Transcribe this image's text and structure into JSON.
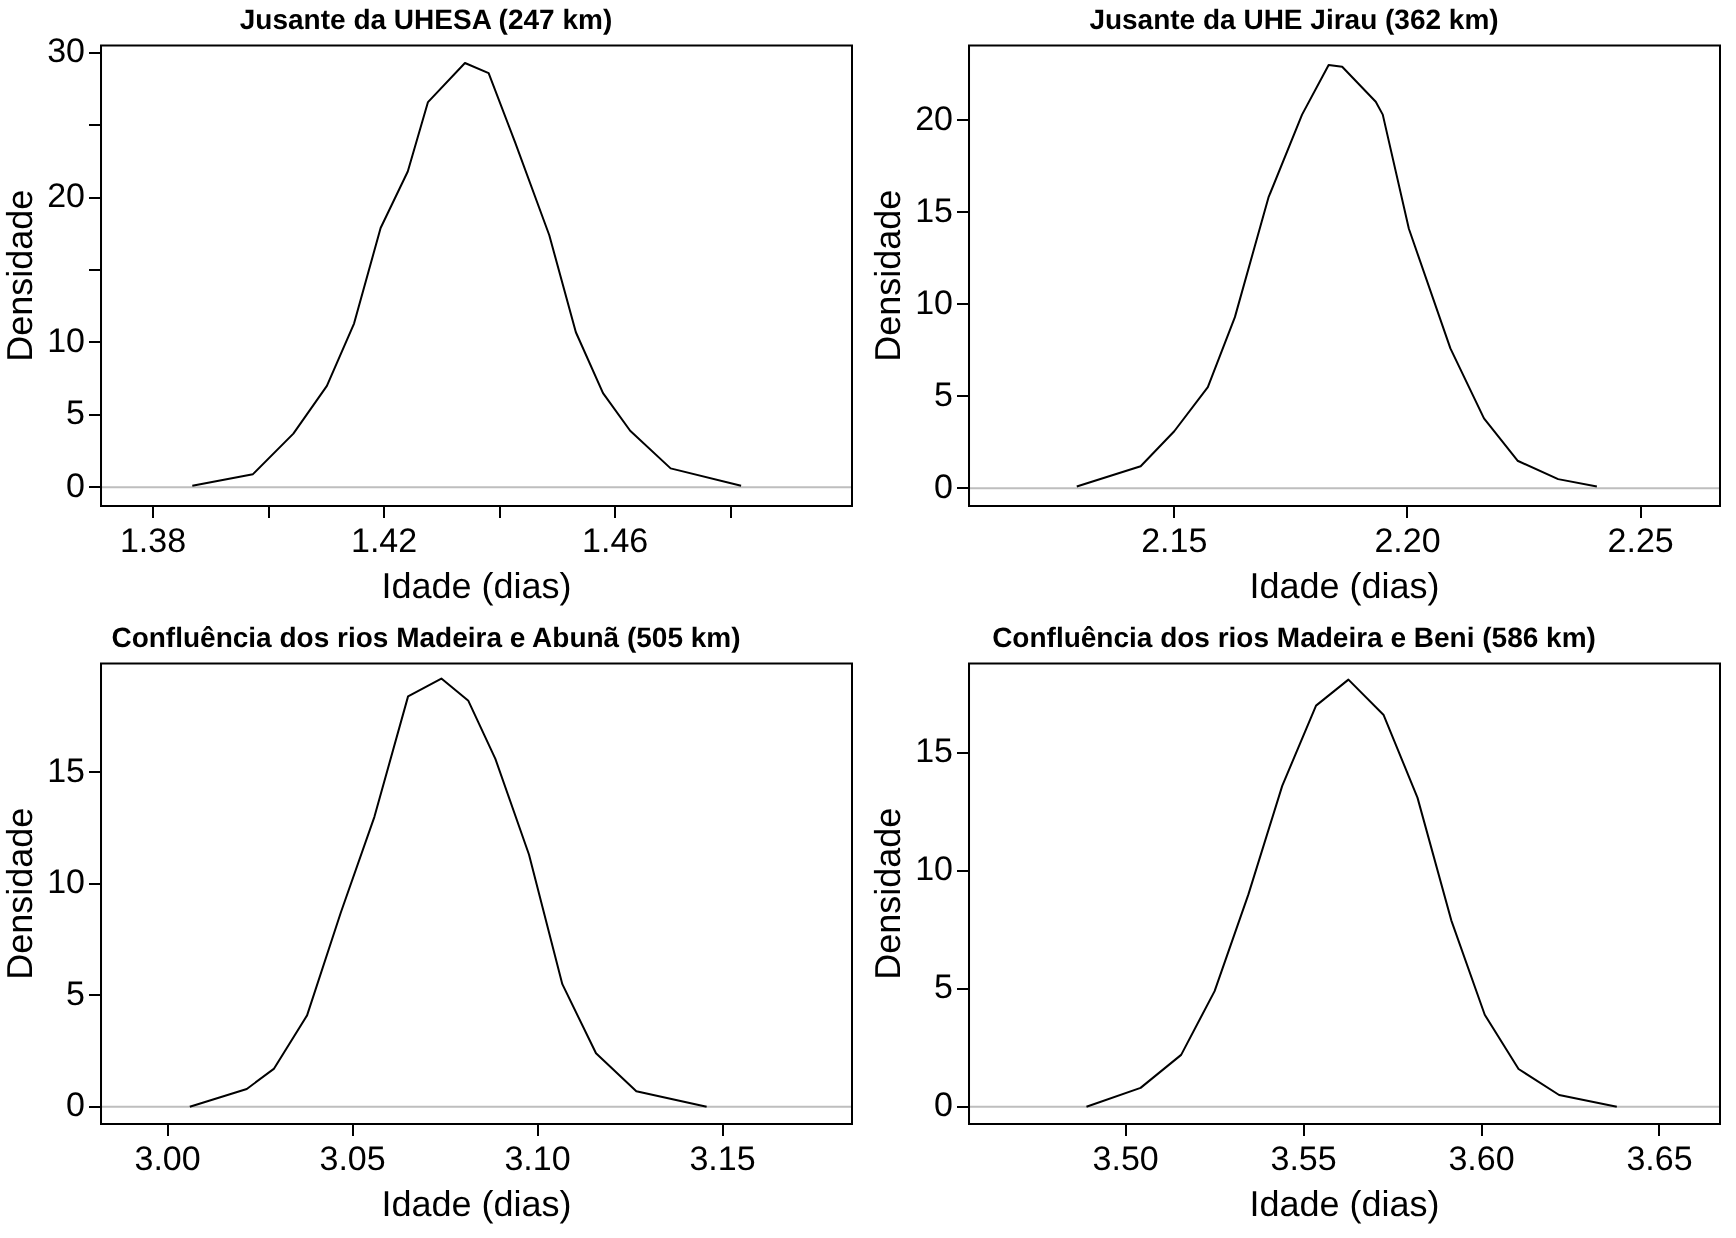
{
  "chart_data": [
    {
      "type": "line",
      "title": "Jusante da UHESA (247 km)",
      "xlabel": "Idade (dias)",
      "ylabel": "Densidade",
      "xlim": [
        1.371,
        1.501
      ],
      "ylim": [
        -1.3,
        30.5
      ],
      "xticks": [
        1.38,
        {
          "value": 1.4,
          "label": null
        },
        1.42,
        {
          "value": 1.44,
          "label": null
        },
        1.46,
        {
          "value": 1.48,
          "label": null
        }
      ],
      "yticks": [
        0,
        5,
        10,
        {
          "value": 15,
          "label": null
        },
        20,
        {
          "value": 25,
          "label": null
        },
        30
      ],
      "grid": false,
      "marker": "none",
      "line_style": "solid",
      "ref_lines": [
        {
          "axis": "y",
          "value": 0,
          "color": "#bebebe"
        }
      ],
      "series": [
        {
          "color": "#000000",
          "x": [
            1.3868,
            1.3973,
            1.4043,
            1.4101,
            1.4148,
            1.4194,
            1.4241,
            1.4276,
            1.434,
            1.4381,
            1.4427,
            1.4486,
            1.4532,
            1.4579,
            1.4626,
            1.4696,
            1.4818
          ],
          "values": [
            0.1,
            0.9,
            3.7,
            7.0,
            11.3,
            17.9,
            21.8,
            26.6,
            29.3,
            28.6,
            23.8,
            17.4,
            10.7,
            6.5,
            3.9,
            1.3,
            0.1
          ]
        }
      ]
    },
    {
      "type": "line",
      "title": "Jusante da UHE Jirau (362 km)",
      "xlabel": "Idade (dias)",
      "ylabel": "Densidade",
      "xlim": [
        2.106,
        2.267
      ],
      "ylim": [
        -0.96,
        24.05
      ],
      "xticks": [
        2.15,
        {
          "value": 2.2,
          "label": "2.20"
        },
        2.25
      ],
      "yticks": [
        0,
        5,
        10,
        15,
        20
      ],
      "grid": false,
      "marker": "none",
      "line_style": "solid",
      "ref_lines": [
        {
          "axis": "y",
          "value": 0,
          "color": "#bebebe"
        }
      ],
      "series": [
        {
          "color": "#000000",
          "x": [
            2.1291,
            2.1428,
            2.15,
            2.1572,
            2.163,
            2.1702,
            2.1774,
            2.1831,
            2.186,
            2.1932,
            2.1947,
            2.2003,
            2.2092,
            2.2164,
            2.2236,
            2.2323,
            2.2406
          ],
          "values": [
            0.1,
            1.2,
            3.1,
            5.5,
            9.3,
            15.8,
            20.3,
            23.0,
            22.9,
            21.0,
            20.3,
            14.1,
            7.6,
            3.8,
            1.5,
            0.5,
            0.1
          ]
        }
      ]
    },
    {
      "type": "line",
      "title": "Confluência dos rios Madeira e Abunã (505 km)",
      "xlabel": "Idade (dias)",
      "ylabel": "Densidade",
      "xlim": [
        2.982,
        3.185
      ],
      "ylim": [
        -0.77,
        19.87
      ],
      "xticks": [
        {
          "value": 3.0,
          "label": "3.00"
        },
        3.05,
        {
          "value": 3.1,
          "label": "3.10"
        },
        3.15
      ],
      "yticks": [
        0,
        5,
        10,
        15
      ],
      "grid": false,
      "marker": "none",
      "line_style": "solid",
      "ref_lines": [
        {
          "axis": "y",
          "value": 0,
          "color": "#bebebe"
        }
      ],
      "series": [
        {
          "color": "#000000",
          "x": [
            3.006,
            3.0214,
            3.0287,
            3.0377,
            3.0468,
            3.0559,
            3.065,
            3.074,
            3.0813,
            3.0886,
            3.0977,
            3.1067,
            3.1158,
            3.1267,
            3.1457
          ],
          "values": [
            0.0,
            0.8,
            1.7,
            4.1,
            8.7,
            13.0,
            18.4,
            19.2,
            18.2,
            15.6,
            11.3,
            5.5,
            2.4,
            0.7,
            0.0
          ]
        }
      ]
    },
    {
      "type": "line",
      "title": "Confluência dos rios Madeira e Beni (586 km)",
      "xlabel": "Idade (dias)",
      "ylabel": "Densidade",
      "xlim": [
        3.456,
        3.667
      ],
      "ylim": [
        -0.73,
        18.78
      ],
      "xticks": [
        {
          "value": 3.5,
          "label": "3.50"
        },
        3.55,
        {
          "value": 3.6,
          "label": "3.60"
        },
        3.65
      ],
      "yticks": [
        0,
        5,
        10,
        15
      ],
      "grid": false,
      "marker": "none",
      "line_style": "solid",
      "ref_lines": [
        {
          "axis": "y",
          "value": 0,
          "color": "#bebebe"
        }
      ],
      "series": [
        {
          "color": "#000000",
          "x": [
            3.489,
            3.5042,
            3.5156,
            3.525,
            3.5345,
            3.544,
            3.5535,
            3.5626,
            3.5725,
            3.582,
            3.5915,
            3.6009,
            3.6104,
            3.6218,
            3.638
          ],
          "values": [
            0.0,
            0.8,
            2.2,
            4.9,
            9.0,
            13.6,
            17.0,
            18.1,
            16.6,
            13.1,
            7.9,
            3.9,
            1.6,
            0.5,
            0.0
          ]
        }
      ]
    }
  ]
}
